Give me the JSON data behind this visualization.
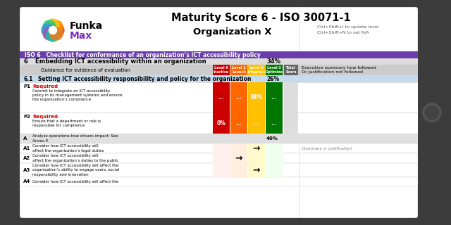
{
  "title1": "Maturity Score 6 - ISO 30071-1",
  "title2": "Organization X",
  "subtitle_hint": "Ctrl+Shift+I to update level\nCtrl+Shift+N to set N/A",
  "logo_text_funka": "Funka",
  "logo_text_max": "Max",
  "iso_bar_color": "#6B3DAB",
  "iso_bar_text": "ISO 6   Checklist for conformance of an organization’s ICT accessibility policy",
  "section6_bg": "#DCDCDC",
  "section6_label": "6",
  "section6_text": "Embedding ICT accessibility within an organization",
  "section6_pct": "34%",
  "level0_color": "#CC0000",
  "level1_color": "#FF6600",
  "level2_color": "#FFC000",
  "level3_color": "#007700",
  "total_col_bg": "#666666",
  "section61_bg": "#C5DCF0",
  "section61_label": "6.1",
  "section61_text": "Setting ICT accessibility responsibility and policy for the organization",
  "section61_pct": "26%",
  "p1_label": "P1",
  "p1_req": "Required",
  "p1_desc": "Commit to integrate an ICT accessibility\npolicy in its management systems and ensure\nthe organization’s compliance",
  "p1_vals": [
    "...",
    "...",
    "38%",
    "..."
  ],
  "p2_label": "P2",
  "p2_req": "Required",
  "p2_desc": "Ensure that a department or role is\nresponsible for compliance",
  "p2_vals": [
    "0%",
    "...",
    "...",
    "..."
  ],
  "A_label": "A",
  "A_text": "Analyse operations how drivers impact: See\nAnnex E",
  "A_pct": "40%",
  "A1_label": "A1",
  "A1_text": "Consider how ICT accessibility will\naffect the organization’s legal duties",
  "A2_label": "A2",
  "A2_text": "Consider how ICT accessibility will\naffect the organization’s duties to the public",
  "A3_label": "A3",
  "A3_text": "Consider how ICT accessibility will affect the\norganization’s ability to engage users, social\nresponsibility and innovation",
  "A4_label": "A4",
  "A4_text": "Consider how ICT accessibility will affect the",
  "exec_summary": "Executive summary how followed\nOr justification not followed",
  "summary_italic": "[Summary or justification]",
  "tablet_bg": "#3C3C3C",
  "screen_bg": "#FFFFFF",
  "logo_petal_colors": [
    "#E74C3C",
    "#FF8C00",
    "#F1C40F",
    "#2ECC71",
    "#3498DB",
    "#9B59B6",
    "#1ABC9C",
    "#E67E22"
  ]
}
